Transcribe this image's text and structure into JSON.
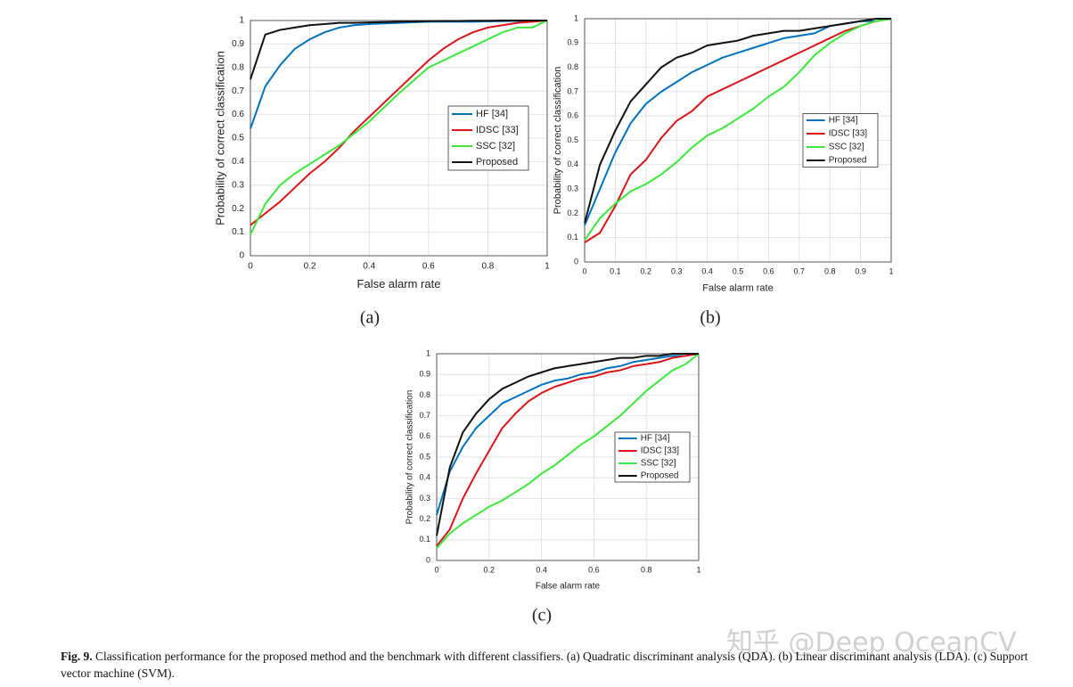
{
  "chart_data": [
    {
      "type": "line",
      "panel": "(a)",
      "xlabel": "False alarm rate",
      "ylabel": "Probability of correct classification",
      "x": [
        0,
        0.05,
        0.1,
        0.15,
        0.2,
        0.25,
        0.3,
        0.35,
        0.4,
        0.5,
        0.6,
        0.65,
        0.7,
        0.75,
        0.8,
        0.85,
        0.9,
        0.95,
        1
      ],
      "series": [
        {
          "name": "HF [34]",
          "color": "#0072bd",
          "values": [
            0.54,
            0.72,
            0.81,
            0.88,
            0.92,
            0.95,
            0.97,
            0.98,
            0.985,
            0.99,
            0.995,
            0.995,
            0.995,
            0.995,
            0.996,
            0.997,
            0.998,
            0.999,
            1
          ]
        },
        {
          "name": "IDSC [33]",
          "color": "#d9141b",
          "values": [
            0.13,
            0.18,
            0.23,
            0.29,
            0.35,
            0.4,
            0.46,
            0.53,
            0.59,
            0.71,
            0.83,
            0.88,
            0.92,
            0.95,
            0.97,
            0.98,
            0.99,
            0.995,
            1
          ]
        },
        {
          "name": "SSC [32]",
          "color": "#3be83b",
          "values": [
            0.09,
            0.22,
            0.3,
            0.35,
            0.39,
            0.43,
            0.47,
            0.52,
            0.57,
            0.69,
            0.8,
            0.83,
            0.86,
            0.89,
            0.92,
            0.95,
            0.97,
            0.97,
            1
          ]
        },
        {
          "name": "Proposed",
          "color": "#111111",
          "values": [
            0.75,
            0.94,
            0.96,
            0.97,
            0.98,
            0.985,
            0.99,
            0.99,
            0.992,
            0.995,
            0.997,
            0.998,
            0.998,
            0.999,
            0.999,
            1,
            1,
            1,
            1
          ]
        }
      ],
      "xlim": [
        0,
        1
      ],
      "ylim": [
        0,
        1
      ],
      "xticks": [
        0,
        0.2,
        0.4,
        0.6,
        0.8,
        1
      ],
      "yticks": [
        0,
        0.1,
        0.2,
        0.3,
        0.4,
        0.5,
        0.6,
        0.7,
        0.8,
        0.9,
        1
      ],
      "grid": true,
      "legend": "east"
    },
    {
      "type": "line",
      "panel": "(b)",
      "xlabel": "False alarm rate",
      "ylabel": "Probability of correct classification",
      "x": [
        0,
        0.05,
        0.1,
        0.15,
        0.2,
        0.25,
        0.3,
        0.35,
        0.4,
        0.45,
        0.5,
        0.55,
        0.6,
        0.65,
        0.7,
        0.75,
        0.8,
        0.85,
        0.9,
        0.95,
        1
      ],
      "series": [
        {
          "name": "HF [34]",
          "color": "#0072bd",
          "values": [
            0.15,
            0.3,
            0.45,
            0.57,
            0.65,
            0.7,
            0.74,
            0.78,
            0.81,
            0.84,
            0.86,
            0.88,
            0.9,
            0.92,
            0.93,
            0.94,
            0.97,
            0.98,
            0.99,
            0.99,
            1
          ]
        },
        {
          "name": "IDSC [33]",
          "color": "#d9141b",
          "values": [
            0.08,
            0.12,
            0.23,
            0.36,
            0.42,
            0.51,
            0.58,
            0.62,
            0.68,
            0.71,
            0.74,
            0.77,
            0.8,
            0.83,
            0.86,
            0.89,
            0.92,
            0.95,
            0.97,
            0.99,
            1
          ]
        },
        {
          "name": "SSC [32]",
          "color": "#3be83b",
          "values": [
            0.09,
            0.18,
            0.24,
            0.29,
            0.32,
            0.36,
            0.41,
            0.47,
            0.52,
            0.55,
            0.59,
            0.63,
            0.68,
            0.72,
            0.78,
            0.85,
            0.9,
            0.94,
            0.97,
            0.99,
            1
          ]
        },
        {
          "name": "Proposed",
          "color": "#111111",
          "values": [
            0.16,
            0.4,
            0.54,
            0.66,
            0.73,
            0.8,
            0.84,
            0.86,
            0.89,
            0.9,
            0.91,
            0.93,
            0.94,
            0.95,
            0.95,
            0.96,
            0.97,
            0.98,
            0.99,
            1,
            1
          ]
        }
      ],
      "xlim": [
        0,
        1
      ],
      "ylim": [
        0,
        1
      ],
      "xticks": [
        0,
        0.1,
        0.2,
        0.3,
        0.4,
        0.5,
        0.6,
        0.7,
        0.8,
        0.9,
        1
      ],
      "yticks": [
        0,
        0.1,
        0.2,
        0.3,
        0.4,
        0.5,
        0.6,
        0.7,
        0.8,
        0.9,
        1
      ],
      "grid": true,
      "legend": "east"
    },
    {
      "type": "line",
      "panel": "(c)",
      "xlabel": "False alarm rate",
      "ylabel": "Probability of correct classification",
      "x": [
        0,
        0.05,
        0.1,
        0.15,
        0.2,
        0.25,
        0.3,
        0.35,
        0.4,
        0.45,
        0.5,
        0.55,
        0.6,
        0.65,
        0.7,
        0.75,
        0.8,
        0.85,
        0.9,
        0.95,
        1
      ],
      "series": [
        {
          "name": "HF [34]",
          "color": "#0072bd",
          "values": [
            0.22,
            0.43,
            0.55,
            0.64,
            0.7,
            0.76,
            0.79,
            0.82,
            0.85,
            0.87,
            0.88,
            0.9,
            0.91,
            0.93,
            0.94,
            0.96,
            0.97,
            0.98,
            0.99,
            0.99,
            1
          ]
        },
        {
          "name": "IDSC [33]",
          "color": "#d9141b",
          "values": [
            0.07,
            0.15,
            0.3,
            0.42,
            0.53,
            0.64,
            0.71,
            0.77,
            0.81,
            0.84,
            0.86,
            0.88,
            0.89,
            0.91,
            0.92,
            0.94,
            0.95,
            0.96,
            0.98,
            0.99,
            1
          ]
        },
        {
          "name": "SSC [32]",
          "color": "#3be83b",
          "values": [
            0.06,
            0.13,
            0.18,
            0.22,
            0.26,
            0.29,
            0.33,
            0.37,
            0.42,
            0.46,
            0.51,
            0.56,
            0.6,
            0.65,
            0.7,
            0.76,
            0.82,
            0.87,
            0.92,
            0.95,
            1
          ]
        },
        {
          "name": "Proposed",
          "color": "#111111",
          "values": [
            0.12,
            0.45,
            0.62,
            0.71,
            0.78,
            0.83,
            0.86,
            0.89,
            0.91,
            0.93,
            0.94,
            0.95,
            0.96,
            0.97,
            0.98,
            0.98,
            0.99,
            0.99,
            1,
            1,
            1
          ]
        }
      ],
      "xlim": [
        0,
        1
      ],
      "ylim": [
        0,
        1
      ],
      "xticks": [
        0,
        0.2,
        0.4,
        0.6,
        0.8,
        1
      ],
      "yticks": [
        0,
        0.1,
        0.2,
        0.3,
        0.4,
        0.5,
        0.6,
        0.7,
        0.8,
        0.9,
        1
      ],
      "grid": true,
      "legend": "east"
    }
  ],
  "caption": {
    "label": "Fig. 9.",
    "text": "Classification performance for the proposed method and the benchmark with different classifiers. (a) Quadratic discriminant analysis (QDA). (b) Linear discriminant analysis (LDA). (c) Support vector machine (SVM)."
  },
  "watermark": "知乎 @Deep OceanCV"
}
